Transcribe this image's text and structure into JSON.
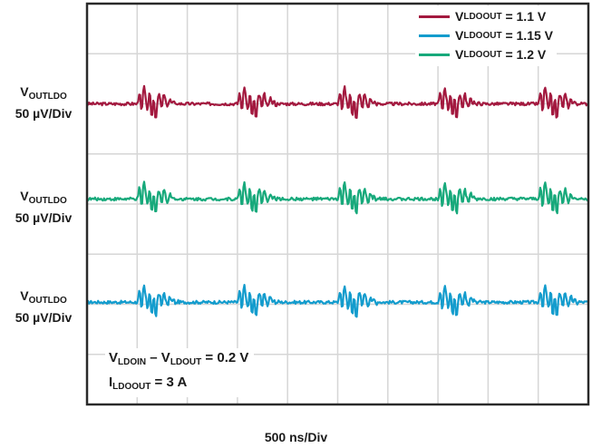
{
  "chart_data": {
    "type": "line",
    "title": "",
    "xlabel": "500 ns/Div",
    "x_unit": "ns",
    "xlim": [
      0,
      5000
    ],
    "ylim_divisions": [
      -4,
      4
    ],
    "y_scale_uV_per_div": 50,
    "grid": true,
    "x_divisions": 10,
    "y_divisions": 8,
    "legend_placement": "top-right",
    "burst_period_ns": 1000,
    "burst_start_ns": 505,
    "burst_sample_step_ns": 20,
    "burst_shape_uV": [
      0,
      14,
      -12,
      20,
      6,
      -9,
      15,
      -18,
      10,
      -20,
      7,
      9,
      -7,
      12,
      2,
      -5,
      7,
      0,
      3,
      -2,
      1,
      0
    ],
    "series": [
      {
        "name": "VLDOOUT = 1.1 V",
        "label_main": "V",
        "label_sub": "LDOOUT",
        "label_rest": " = 1.1 V",
        "color": "#a3193f",
        "offset_uV": 100,
        "trace_label": {
          "main": "V",
          "sub": "OUTLDO",
          "scale": "50 µV/Div"
        }
      },
      {
        "name": "VLDOOUT = 1.15 V",
        "label_main": "V",
        "label_sub": "LDOOUT",
        "label_rest": " = 1.15 V",
        "color": "#139ccd",
        "offset_uV": -98,
        "trace_label": {
          "main": "V",
          "sub": "OUTLDO",
          "scale": "50 µV/Div"
        }
      },
      {
        "name": "VLDOOUT = 1.2 V",
        "label_main": "V",
        "label_sub": "LDOOUT",
        "label_rest": " = 1.2 V",
        "color": "#17a97b",
        "offset_uV": 5,
        "trace_label": {
          "main": "V",
          "sub": "OUTLDO",
          "scale": "50 µV/Div"
        }
      }
    ],
    "annotation": {
      "line1": {
        "a": "V",
        "a_sub": "LDOIN",
        "b": " – V",
        "b_sub": "LDOUT",
        "rest": " = 0.2 V"
      },
      "line2": {
        "a": "I",
        "a_sub": "LDOOUT",
        "rest": " = 3 A"
      }
    }
  }
}
